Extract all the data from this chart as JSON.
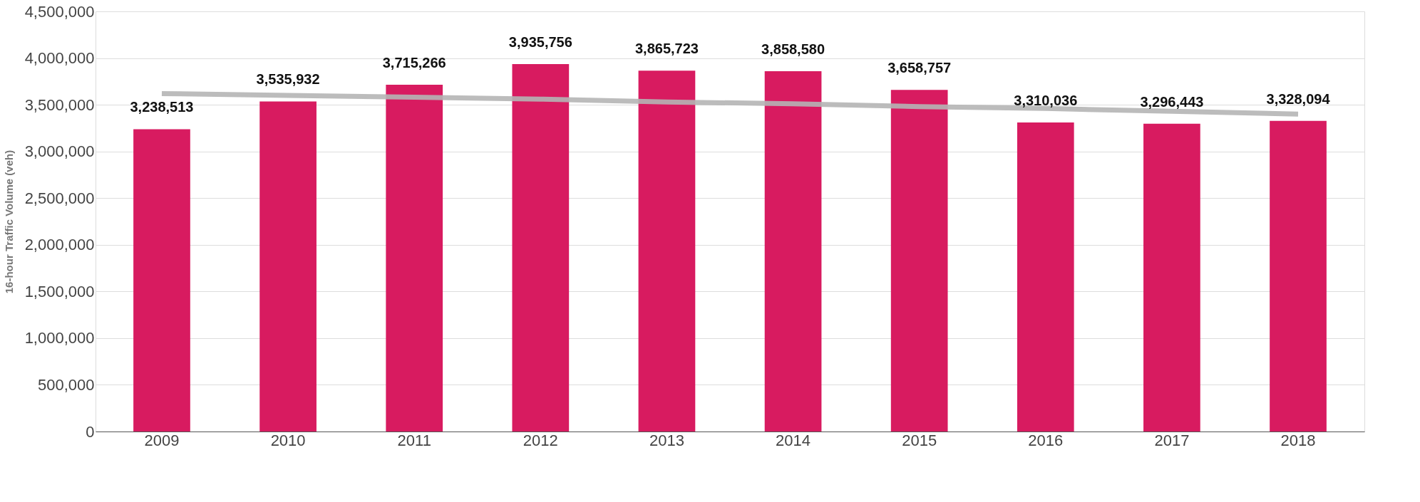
{
  "chart_data": {
    "type": "bar",
    "ylabel": "16-hour Traffic Volume (veh)",
    "categories": [
      "2009",
      "2010",
      "2011",
      "2012",
      "2013",
      "2014",
      "2015",
      "2016",
      "2017",
      "2018"
    ],
    "series": [
      {
        "color": "#d81b60",
        "values": [
          3238513,
          3535932,
          3715266,
          3935756,
          3865723,
          3858580,
          3658757,
          3310036,
          3296443,
          3328094
        ],
        "value_labels": [
          "3,238,513",
          "3,535,932",
          "3,715,266",
          "3,935,756",
          "3,865,723",
          "3,858,580",
          "3,658,757",
          "3,310,036",
          "3,296,443",
          "3,328,094"
        ]
      },
      {
        "type": "line",
        "color": "#b5b5b5",
        "values": [
          3620000,
          3600000,
          3580000,
          3560000,
          3530000,
          3510000,
          3480000,
          3460000,
          3430000,
          3400000
        ]
      }
    ],
    "ylim": [
      0,
      4500000
    ],
    "yticks": [
      {
        "value": 0,
        "label": "0"
      },
      {
        "value": 500000,
        "label": "500,000"
      },
      {
        "value": 1000000,
        "label": "1,000,000"
      },
      {
        "value": 1500000,
        "label": "1,500,000"
      },
      {
        "value": 2000000,
        "label": "2,000,000"
      },
      {
        "value": 2500000,
        "label": "2,500,000"
      },
      {
        "value": 3000000,
        "label": "3,000,000"
      },
      {
        "value": 3500000,
        "label": "3,500,000"
      },
      {
        "value": 4000000,
        "label": "4,000,000"
      },
      {
        "value": 4500000,
        "label": "4,500,000"
      }
    ],
    "grid": "y"
  }
}
